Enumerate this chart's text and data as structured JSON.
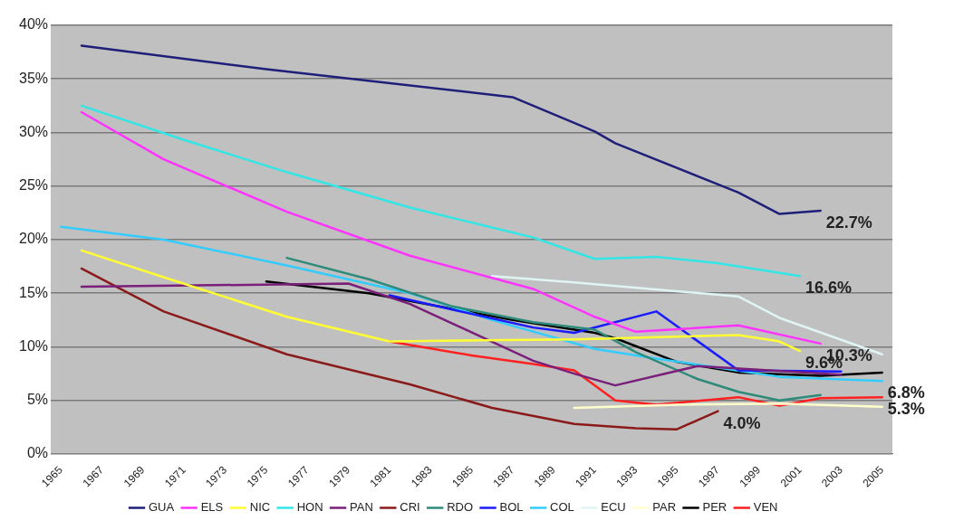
{
  "chart_data": {
    "type": "line",
    "xlim": [
      1964.5,
      2005.5
    ],
    "xticks": [
      1965,
      1967,
      1969,
      1971,
      1973,
      1975,
      1977,
      1979,
      1981,
      1983,
      1985,
      1987,
      1989,
      1991,
      1993,
      1995,
      1997,
      1999,
      2001,
      2003,
      2005
    ],
    "ylim": [
      0,
      40
    ],
    "yticks": [
      {
        "value": 0,
        "label": "0%"
      },
      {
        "value": 5,
        "label": "5%"
      },
      {
        "value": 10,
        "label": "10%"
      },
      {
        "value": 15,
        "label": "15%"
      },
      {
        "value": 20,
        "label": "20%"
      },
      {
        "value": 25,
        "label": "25%"
      },
      {
        "value": 30,
        "label": "30%"
      },
      {
        "value": 35,
        "label": "35%"
      },
      {
        "value": 40,
        "label": "40%"
      }
    ],
    "grid": "y",
    "legend": "bottom",
    "marker": "none",
    "line_style": "solid",
    "series": [
      {
        "name": "GUA",
        "color": "#1f1f7a",
        "x": [
          1966,
          1975,
          1987,
          1991,
          1992,
          1998,
          2000,
          2002
        ],
        "values": [
          38.1,
          35.9,
          33.3,
          30.1,
          29.0,
          24.4,
          22.4,
          22.7
        ]
      },
      {
        "name": "ELS",
        "color": "#ff33ff",
        "x": [
          1966,
          1970,
          1976,
          1982,
          1988,
          1991,
          1993,
          1998,
          2002
        ],
        "values": [
          31.9,
          27.5,
          22.6,
          18.5,
          15.4,
          12.8,
          11.4,
          12.0,
          10.3
        ]
      },
      {
        "name": "NIC",
        "color": "#ffff33",
        "x": [
          1966,
          1970,
          1976,
          1981,
          1990,
          1998,
          2000,
          2001
        ],
        "values": [
          19.0,
          16.5,
          12.8,
          10.5,
          10.7,
          11.1,
          10.5,
          9.6
        ]
      },
      {
        "name": "HON",
        "color": "#33e6e6",
        "x": [
          1966,
          1971,
          1976,
          1982,
          1988,
          1991,
          1994,
          1997,
          2001
        ],
        "values": [
          32.5,
          29.3,
          26.3,
          23.0,
          20.2,
          18.2,
          18.4,
          17.8,
          16.6
        ]
      },
      {
        "name": "PAN",
        "color": "#7a1f7a",
        "x": [
          1966,
          1979,
          1982,
          1988,
          1990,
          1992,
          1996,
          2003
        ],
        "values": [
          15.6,
          15.9,
          14.0,
          8.7,
          7.5,
          6.4,
          8.2,
          7.4
        ]
      },
      {
        "name": "CRI",
        "color": "#8b1a1a",
        "x": [
          1966,
          1970,
          1976,
          1982,
          1986,
          1990,
          1993,
          1995,
          1997
        ],
        "values": [
          17.3,
          13.3,
          9.3,
          6.5,
          4.3,
          2.8,
          2.4,
          2.3,
          4.0
        ]
      },
      {
        "name": "RDO",
        "color": "#2e8b7a",
        "x": [
          1976,
          1980,
          1984,
          1988,
          1991,
          1993,
          1996,
          1998,
          2000,
          2002
        ],
        "values": [
          18.3,
          16.3,
          13.8,
          12.3,
          11.6,
          9.5,
          7.0,
          5.8,
          5.0,
          5.5
        ]
      },
      {
        "name": "BOL",
        "color": "#1a1aff",
        "x": [
          1981,
          1984,
          1988,
          1990,
          1994,
          1998,
          2003
        ],
        "values": [
          14.8,
          13.5,
          11.8,
          11.3,
          13.3,
          7.8,
          7.7
        ]
      },
      {
        "name": "COL",
        "color": "#33ccff",
        "x": [
          1965,
          1970,
          1976,
          1982,
          1986,
          1991,
          1994,
          2000,
          2005
        ],
        "values": [
          21.2,
          20.0,
          17.6,
          15.0,
          12.5,
          9.8,
          8.9,
          7.2,
          6.8
        ]
      },
      {
        "name": "ECU",
        "color": "#e0f4f4",
        "x": [
          1986,
          1990,
          1998,
          2000,
          2005
        ],
        "values": [
          16.6,
          16.0,
          14.7,
          12.7,
          9.3
        ]
      },
      {
        "name": "PAR",
        "color": "#ffffcc",
        "x": [
          1990,
          1995,
          2000,
          2005
        ],
        "values": [
          4.3,
          4.6,
          4.7,
          4.4
        ]
      },
      {
        "name": "PER",
        "color": "#000000",
        "x": [
          1975,
          1980,
          1987,
          1991,
          1992,
          1995,
          1998,
          2002,
          2005
        ],
        "values": [
          16.1,
          15.0,
          12.5,
          11.3,
          10.8,
          8.6,
          7.6,
          7.3,
          7.6
        ]
      },
      {
        "name": "VEN",
        "color": "#ff2020",
        "x": [
          1981,
          1985,
          1988,
          1990,
          1992,
          1994,
          1998,
          2000,
          2002,
          2005
        ],
        "values": [
          10.5,
          9.2,
          8.4,
          7.8,
          5.0,
          4.6,
          5.3,
          4.5,
          5.2,
          5.3
        ]
      }
    ],
    "annotations": [
      {
        "text": "22.7%",
        "x": 2002,
        "y": 22.7
      },
      {
        "text": "16.6%",
        "x": 2001,
        "y": 16.6
      },
      {
        "text": "10.3%",
        "x": 2002,
        "y": 10.3
      },
      {
        "text": "9.6%",
        "x": 2001,
        "y": 9.6
      },
      {
        "text": "6.8%",
        "x": 2005,
        "y": 6.8
      },
      {
        "text": "5.3%",
        "x": 2005,
        "y": 5.3
      },
      {
        "text": "4.0%",
        "x": 1997,
        "y": 4.0
      }
    ]
  }
}
